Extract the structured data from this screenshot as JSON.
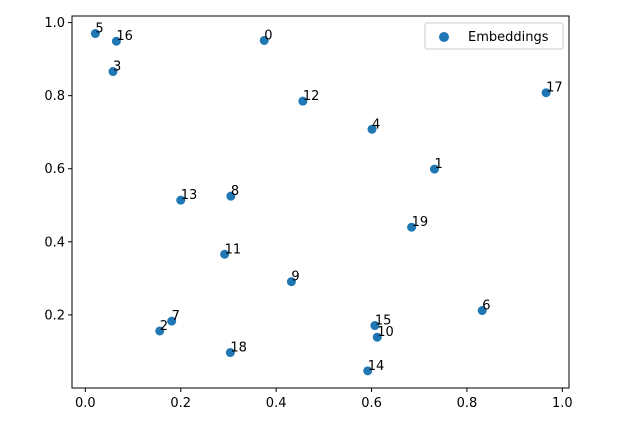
{
  "chart_data": {
    "type": "scatter",
    "series": [
      {
        "name": "Embeddings",
        "color": "#1f77b4",
        "points": [
          {
            "label": "0",
            "x": 0.375,
            "y": 0.951
          },
          {
            "label": "1",
            "x": 0.732,
            "y": 0.599
          },
          {
            "label": "2",
            "x": 0.156,
            "y": 0.156
          },
          {
            "label": "3",
            "x": 0.058,
            "y": 0.866
          },
          {
            "label": "4",
            "x": 0.601,
            "y": 0.708
          },
          {
            "label": "5",
            "x": 0.021,
            "y": 0.97
          },
          {
            "label": "6",
            "x": 0.832,
            "y": 0.212
          },
          {
            "label": "7",
            "x": 0.181,
            "y": 0.183
          },
          {
            "label": "8",
            "x": 0.305,
            "y": 0.525
          },
          {
            "label": "9",
            "x": 0.432,
            "y": 0.291
          },
          {
            "label": "10",
            "x": 0.612,
            "y": 0.139
          },
          {
            "label": "11",
            "x": 0.292,
            "y": 0.366
          },
          {
            "label": "12",
            "x": 0.456,
            "y": 0.785
          },
          {
            "label": "13",
            "x": 0.2,
            "y": 0.514
          },
          {
            "label": "14",
            "x": 0.592,
            "y": 0.047
          },
          {
            "label": "15",
            "x": 0.607,
            "y": 0.171
          },
          {
            "label": "16",
            "x": 0.065,
            "y": 0.949
          },
          {
            "label": "17",
            "x": 0.966,
            "y": 0.808
          },
          {
            "label": "18",
            "x": 0.304,
            "y": 0.097
          },
          {
            "label": "19",
            "x": 0.684,
            "y": 0.44
          }
        ]
      }
    ],
    "xlim": [
      -0.028,
      1.014
    ],
    "ylim": [
      0.0,
      1.018
    ],
    "xticks": [
      "0.0",
      "0.2",
      "0.4",
      "0.6",
      "0.8",
      "1.0"
    ],
    "yticks": [
      "0.2",
      "0.4",
      "0.6",
      "0.8",
      "1.0"
    ],
    "title": "",
    "xlabel": "",
    "ylabel": "",
    "grid": false,
    "legend": {
      "position": "top-right",
      "entries": [
        "Embeddings"
      ]
    }
  }
}
